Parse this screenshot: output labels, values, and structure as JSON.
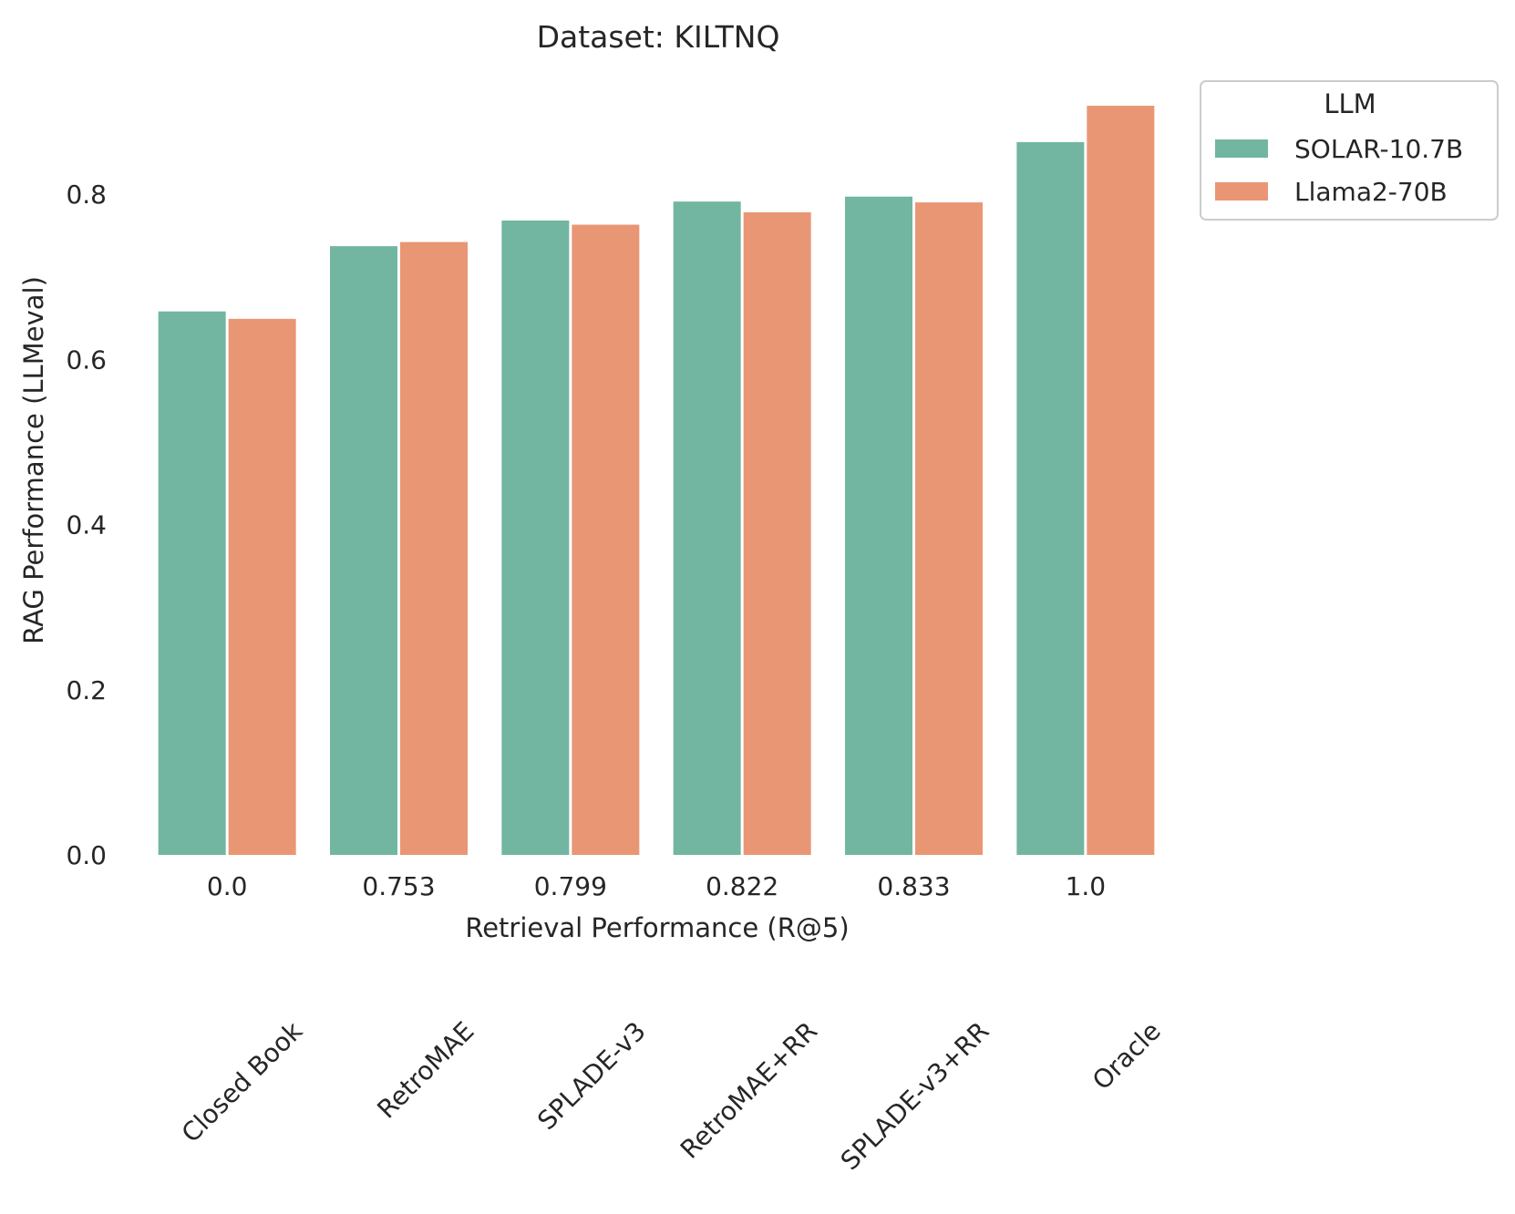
{
  "chart_data": {
    "type": "bar",
    "title": "Dataset: KILTNQ",
    "xlabel": "Retrieval Performance (R@5)",
    "ylabel": "RAG Performance (LLMeval)",
    "ylim": [
      0,
      0.93
    ],
    "yticks": [
      "0.0",
      "0.2",
      "0.4",
      "0.6",
      "0.8"
    ],
    "ytick_values": [
      0.0,
      0.2,
      0.4,
      0.6,
      0.8
    ],
    "categories": [
      "0.0",
      "0.753",
      "0.799",
      "0.822",
      "0.833",
      "1.0"
    ],
    "method_labels": [
      "Closed Book",
      "RetroMAE",
      "SPLADE-v3",
      "RetroMAE+RR",
      "SPLADE-v3+RR",
      "Oracle"
    ],
    "series": [
      {
        "name": "SOLAR-10.7B",
        "color": "#72b6a1",
        "values": [
          0.658,
          0.737,
          0.768,
          0.791,
          0.797,
          0.863
        ]
      },
      {
        "name": "Llama2-70B",
        "color": "#e99675",
        "values": [
          0.649,
          0.742,
          0.763,
          0.778,
          0.79,
          0.907
        ]
      }
    ],
    "legend": {
      "title": "LLM",
      "position": "outside-top-right"
    },
    "grid": false
  }
}
